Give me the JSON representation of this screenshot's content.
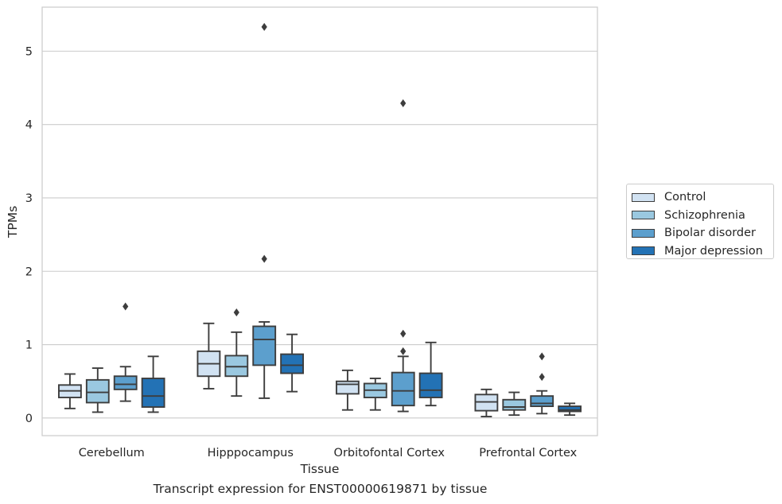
{
  "caption": "Transcript expression for ENST00000619871 by tissue",
  "chart_data": {
    "type": "box",
    "title": "",
    "xlabel": "Tissue",
    "ylabel": "TPMs",
    "categories": [
      "Cerebellum",
      "Hipppocampus",
      "Orbitofontal Cortex",
      "Prefrontal Cortex"
    ],
    "ylim": [
      -0.24,
      5.6
    ],
    "yticks": [
      0,
      1,
      2,
      3,
      4,
      5
    ],
    "grid": "horizontal",
    "legend_position": "right",
    "series": [
      {
        "name": "Control",
        "color": "#d1e2f2",
        "boxes": [
          {
            "whislo": 0.13,
            "q1": 0.28,
            "med": 0.37,
            "q3": 0.45,
            "whishi": 0.6,
            "fliers": []
          },
          {
            "whislo": 0.4,
            "q1": 0.57,
            "med": 0.74,
            "q3": 0.91,
            "whishi": 1.29,
            "fliers": []
          },
          {
            "whislo": 0.11,
            "q1": 0.33,
            "med": 0.46,
            "q3": 0.5,
            "whishi": 0.65,
            "fliers": []
          },
          {
            "whislo": 0.02,
            "q1": 0.1,
            "med": 0.22,
            "q3": 0.32,
            "whishi": 0.39,
            "fliers": []
          }
        ]
      },
      {
        "name": "Schizophrenia",
        "color": "#9ac8e0",
        "boxes": [
          {
            "whislo": 0.08,
            "q1": 0.21,
            "med": 0.35,
            "q3": 0.52,
            "whishi": 0.68,
            "fliers": []
          },
          {
            "whislo": 0.3,
            "q1": 0.57,
            "med": 0.7,
            "q3": 0.85,
            "whishi": 1.17,
            "fliers": [
              1.44
            ]
          },
          {
            "whislo": 0.11,
            "q1": 0.28,
            "med": 0.38,
            "q3": 0.47,
            "whishi": 0.54,
            "fliers": []
          },
          {
            "whislo": 0.04,
            "q1": 0.11,
            "med": 0.15,
            "q3": 0.25,
            "whishi": 0.35,
            "fliers": []
          }
        ]
      },
      {
        "name": "Bipolar disorder",
        "color": "#5c9fcd",
        "boxes": [
          {
            "whislo": 0.23,
            "q1": 0.39,
            "med": 0.46,
            "q3": 0.57,
            "whishi": 0.7,
            "fliers": [
              1.52
            ]
          },
          {
            "whislo": 0.27,
            "q1": 0.72,
            "med": 1.07,
            "q3": 1.25,
            "whishi": 1.31,
            "fliers": [
              2.17,
              5.33
            ]
          },
          {
            "whislo": 0.09,
            "q1": 0.17,
            "med": 0.37,
            "q3": 0.62,
            "whishi": 0.84,
            "fliers": [
              0.91,
              1.15,
              4.29
            ]
          },
          {
            "whislo": 0.06,
            "q1": 0.16,
            "med": 0.2,
            "q3": 0.3,
            "whishi": 0.37,
            "fliers": [
              0.56,
              0.84
            ]
          }
        ]
      },
      {
        "name": "Major depression",
        "color": "#2372b5",
        "boxes": [
          {
            "whislo": 0.08,
            "q1": 0.15,
            "med": 0.3,
            "q3": 0.54,
            "whishi": 0.84,
            "fliers": []
          },
          {
            "whislo": 0.36,
            "q1": 0.61,
            "med": 0.72,
            "q3": 0.87,
            "whishi": 1.14,
            "fliers": []
          },
          {
            "whislo": 0.17,
            "q1": 0.28,
            "med": 0.38,
            "q3": 0.61,
            "whishi": 1.03,
            "fliers": []
          },
          {
            "whislo": 0.04,
            "q1": 0.09,
            "med": 0.11,
            "q3": 0.16,
            "whishi": 0.2,
            "fliers": []
          }
        ]
      }
    ]
  }
}
